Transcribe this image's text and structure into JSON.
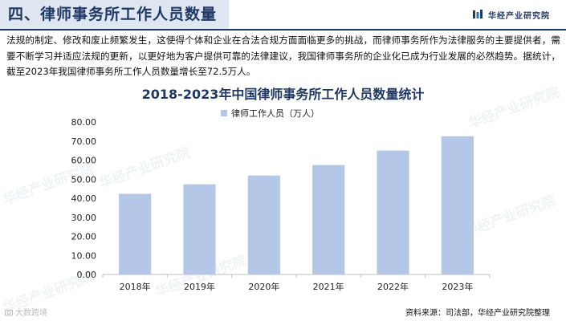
{
  "header": {
    "title": "四、律师事务所工作人员数量",
    "logo_text": "华经产业研究院"
  },
  "paragraph": "法规的制定、修改和废止频繁发生，这使得个体和企业在合法合规方面面临更多的挑战，而律师事务所作为法律服务的主要提供者，需要不断学习并适应法规的更新，以更好地为客户提供可靠的法律建议，我国律师事务所的企业化已成为行业发展的必然趋势。据统计，截至2023年我国律师事务所工作人员数量增长至72.5万人。",
  "source": "资料来源：司法部，华经产业研究院整理",
  "watermark_text": "华经产业研究院",
  "corner_mark": "大数跨境",
  "colors": {
    "bar": "#b4c7e7",
    "title": "#1f3864",
    "axis": "#bfbfbf"
  },
  "chart_data": {
    "type": "bar",
    "title": "2018-2023年中国律师事务所工作人员数量统计",
    "categories": [
      "2018年",
      "2019年",
      "2020年",
      "2021年",
      "2022年",
      "2023年"
    ],
    "series": [
      {
        "name": "律师工作人员（万人）",
        "values": [
          42.3,
          47.3,
          51.9,
          57.4,
          65.0,
          72.5
        ]
      }
    ],
    "ylim": [
      0,
      80
    ],
    "yticks": [
      "0.00",
      "10.00",
      "20.00",
      "30.00",
      "40.00",
      "50.00",
      "60.00",
      "70.00",
      "80.00"
    ],
    "xlabel": "",
    "ylabel": "",
    "legend": "top-center",
    "grid": false
  }
}
